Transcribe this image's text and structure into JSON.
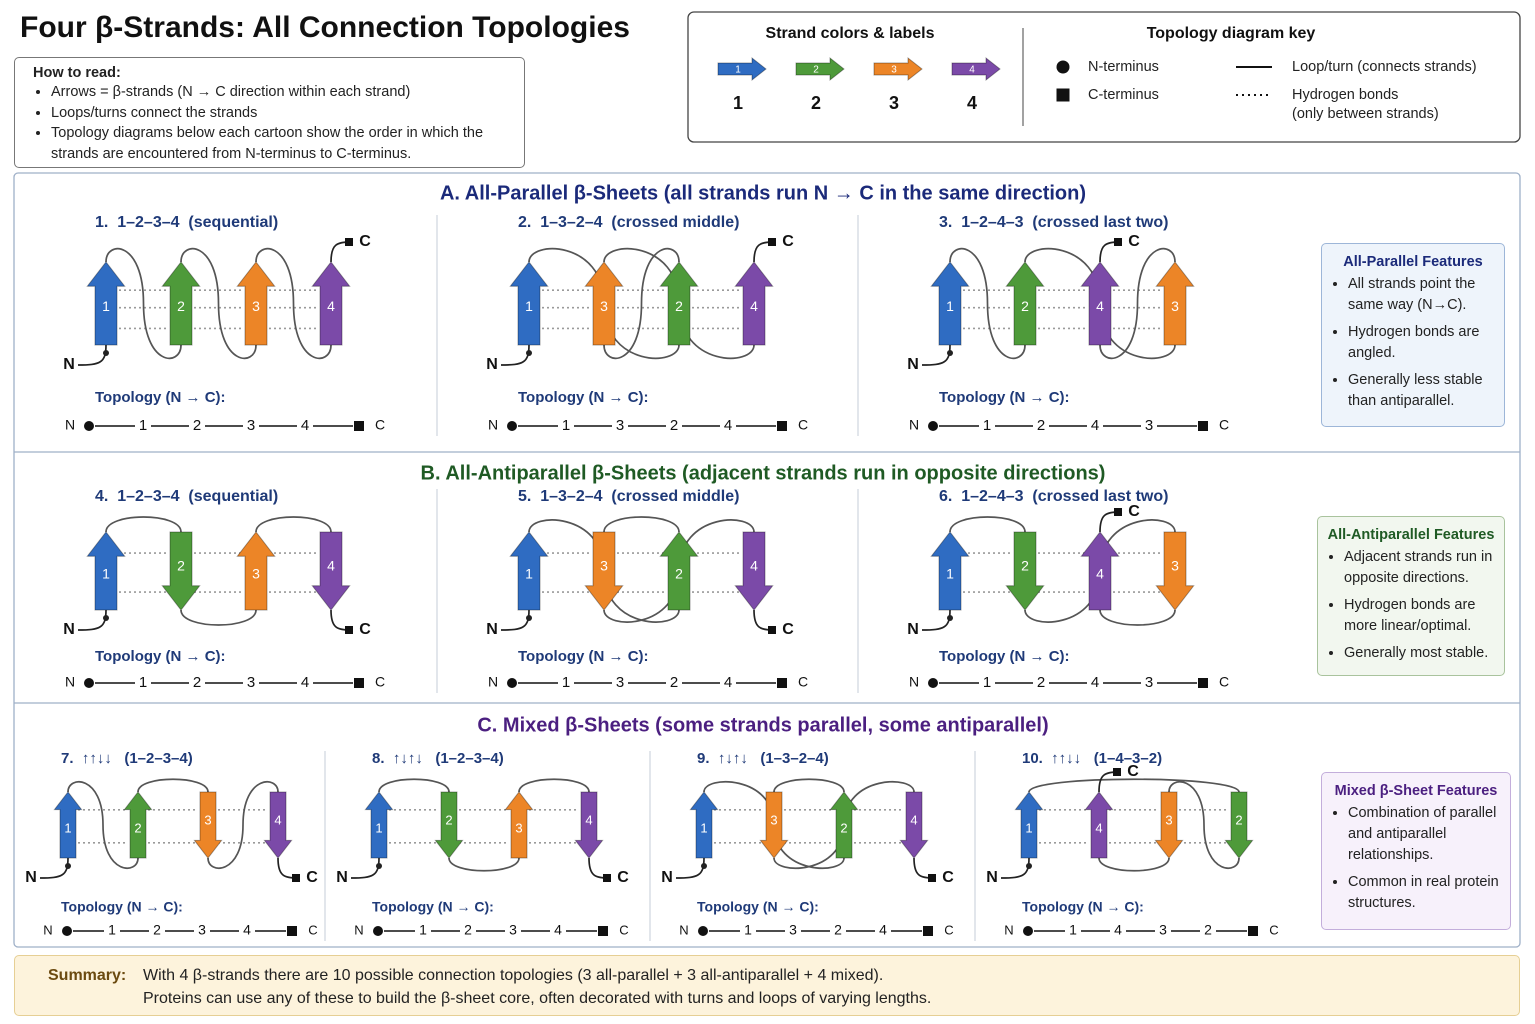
{
  "title": "Four β-Strands: All Connection Topologies",
  "how_to_read": {
    "heading": "How to read:",
    "items": [
      "Arrows = β-strands (N → C direction within each strand)",
      "Loops/turns connect the strands",
      "Topology diagrams below each cartoon show the order in which the strands are encountered from N-terminus to C-terminus."
    ]
  },
  "key": {
    "strands_heading": "Strand colors & labels",
    "strands": [
      {
        "label": "1",
        "color": "#2f6cc2"
      },
      {
        "label": "2",
        "color": "#4e9a3a"
      },
      {
        "label": "3",
        "color": "#ec8527"
      },
      {
        "label": "4",
        "color": "#7b4aa8"
      }
    ],
    "topology_heading": "Topology diagram key",
    "topology_items": [
      {
        "symbol": "circle",
        "lines": [
          "N-terminus"
        ]
      },
      {
        "symbol": "line",
        "lines": [
          "Loop/turn (connects strands)"
        ]
      },
      {
        "symbol": "square",
        "lines": [
          "C-terminus"
        ]
      },
      {
        "symbol": "dots",
        "lines": [
          "Hydrogen bonds",
          "(only between strands)"
        ]
      }
    ]
  },
  "sections": [
    {
      "title": "A. All-Parallel β-Sheets (all strands run N → C in the same direction)",
      "panels": [
        {
          "heading": "1.  1–2–3–4  (sequential)",
          "directions": [
            "up",
            "up",
            "up",
            "up"
          ],
          "topology_label": "Topology (N → C):",
          "topology": [
            "N",
            "1",
            "2",
            "3",
            "4",
            "C"
          ]
        },
        {
          "heading": "2.  1–3–2–4  (crossed middle)",
          "directions": [
            "up",
            "up",
            "up",
            "up"
          ],
          "topology_label": "Topology (N → C):",
          "topology": [
            "N",
            "1",
            "3",
            "2",
            "4",
            "C"
          ]
        },
        {
          "heading": "3.  1–2–4–3  (crossed last two)",
          "directions": [
            "up",
            "up",
            "up",
            "up"
          ],
          "topology_label": "Topology (N → C):",
          "topology": [
            "N",
            "1",
            "2",
            "4",
            "3",
            "C"
          ]
        }
      ],
      "features": {
        "heading": "All-Parallel Features",
        "items": [
          "All strands point the same way (N→C).",
          "Hydrogen bonds are angled.",
          "Generally less stable than antiparallel."
        ]
      }
    },
    {
      "title": "B. All-Antiparallel β-Sheets (adjacent strands run in opposite directions)",
      "panels": [
        {
          "heading": "4.  1–2–3–4  (sequential)",
          "directions": [
            "up",
            "down",
            "up",
            "down"
          ],
          "topology_label": "Topology (N → C):",
          "topology": [
            "N",
            "1",
            "2",
            "3",
            "4",
            "C"
          ]
        },
        {
          "heading": "5.  1–3–2–4  (crossed middle)",
          "directions": [
            "up",
            "down",
            "up",
            "down"
          ],
          "topology_label": "Topology (N → C):",
          "topology": [
            "N",
            "1",
            "3",
            "2",
            "4",
            "C"
          ]
        },
        {
          "heading": "6.  1–2–4–3  (crossed last two)",
          "directions": [
            "up",
            "down",
            "up",
            "down"
          ],
          "topology_label": "Topology (N → C):",
          "topology": [
            "N",
            "1",
            "2",
            "4",
            "3",
            "C"
          ]
        }
      ],
      "features": {
        "heading": "All-Antiparallel Features",
        "items": [
          "Adjacent strands run in opposite directions.",
          "Hydrogen bonds are more linear/optimal.",
          "Generally most stable."
        ]
      }
    },
    {
      "title": "C. Mixed β-Sheets (some strands parallel, some antiparallel)",
      "panels": [
        {
          "heading": "7.  ↑↑↓↓   (1–2–3–4)",
          "directions": [
            "up",
            "up",
            "down",
            "down"
          ],
          "topology_label": "Topology (N → C):",
          "topology": [
            "N",
            "1",
            "2",
            "3",
            "4",
            "C"
          ]
        },
        {
          "heading": "8.  ↑↓↑↓   (1–2–3–4)",
          "directions": [
            "up",
            "down",
            "up",
            "down"
          ],
          "topology_label": "Topology (N → C):",
          "topology": [
            "N",
            "1",
            "2",
            "3",
            "4",
            "C"
          ]
        },
        {
          "heading": "9.  ↑↓↑↓   (1–3–2–4)",
          "directions": [
            "up",
            "down",
            "up",
            "down"
          ],
          "topology_label": "Topology (N → C):",
          "topology": [
            "N",
            "1",
            "3",
            "2",
            "4",
            "C"
          ]
        },
        {
          "heading": "10.  ↑↑↓↓   (1–4–3–2)",
          "directions": [
            "up",
            "up",
            "down",
            "down"
          ],
          "topology_label": "Topology (N → C):",
          "topology": [
            "N",
            "1",
            "4",
            "3",
            "2",
            "C"
          ]
        }
      ],
      "features": {
        "heading": "Mixed β-Sheet Features",
        "items": [
          "Combination of parallel and antiparallel relationships.",
          "Common in real protein structures."
        ]
      }
    }
  ],
  "summary": {
    "label": "Summary:",
    "lines": [
      "With 4 β-strands there are 10 possible connection topologies (3 all-parallel + 3 all-antiparallel + 4 mixed).",
      "Proteins can use any of these to build the β-sheet core, often decorated with turns and loops of varying lengths."
    ]
  }
}
